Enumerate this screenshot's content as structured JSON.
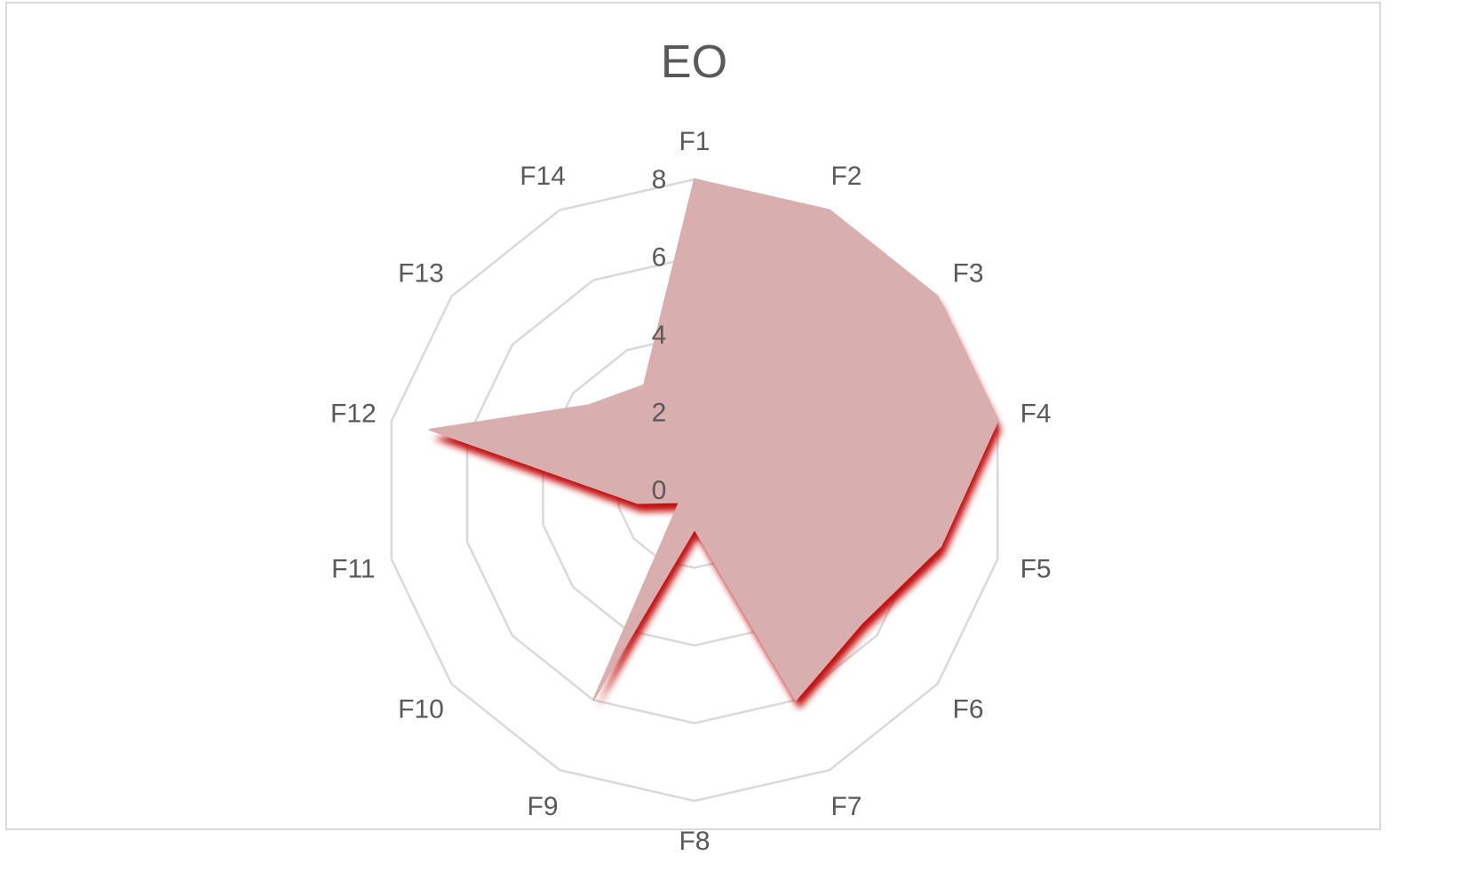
{
  "chart_data": {
    "type": "radar",
    "title": "EO",
    "categories": [
      "F1",
      "F2",
      "F3",
      "F4",
      "F5",
      "F6",
      "F7",
      "F8",
      "F9",
      "F10",
      "F11",
      "F12",
      "F13",
      "F14"
    ],
    "series": [
      {
        "values": [
          8,
          8,
          8,
          8,
          6.5,
          5.5,
          6,
          1,
          6,
          0.5,
          1.5,
          7,
          3.5,
          3
        ]
      }
    ],
    "rlim": [
      0,
      8
    ],
    "ticks": [
      "0",
      "2",
      "4",
      "6",
      "8"
    ],
    "grid": true,
    "legend": "none",
    "fill_color": "#d8aeae",
    "shadow_color": "#c00000",
    "grid_color": "#d9d9d9"
  }
}
